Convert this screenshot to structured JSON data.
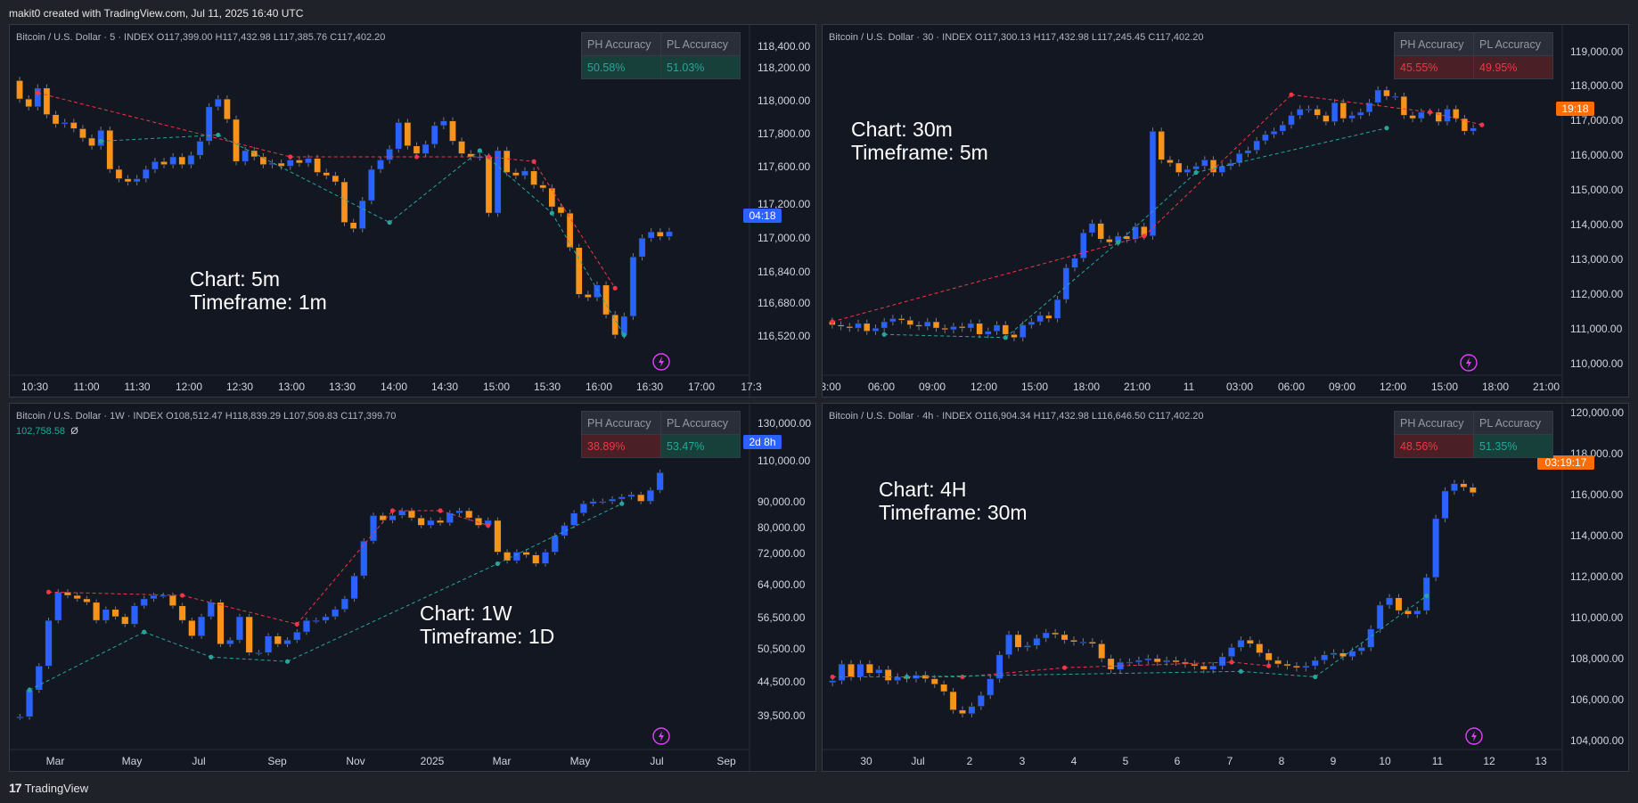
{
  "topbar": {
    "text": "makit0 created with TradingView.com, Jul 11, 2025 16:40 UTC"
  },
  "footer": {
    "logo": "17",
    "brand": "TradingView"
  },
  "colors": {
    "bull": "#2962ff",
    "bear": "#f7931a",
    "ph": "#f23645",
    "pl": "#26a69a",
    "bg": "#131722"
  },
  "panels": [
    {
      "header": "Bitcoin / U.S. Dollar · 5 · INDEX  O117,399.00  H117,432.98  L117,385.76  C117,402.20",
      "sub": "",
      "accuracy": {
        "ph_label": "PH Accuracy",
        "pl_label": "PL Accuracy",
        "ph_value": "50.58%",
        "pl_value": "51.03%",
        "ph_color": "green",
        "pl_color": "green"
      },
      "annotation": {
        "line1": "Chart: 5m",
        "line2": "Timeframe: 1m"
      },
      "chart_data": {
        "type": "candlestick",
        "price_ticks": [
          "118,400.00",
          "118,200.00",
          "118,000.00",
          "117,800.00",
          "117,600.00",
          "117,200.00",
          "117,000.00",
          "116,840.00",
          "116,680.00",
          "116,520.00"
        ],
        "time_ticks": [
          "10:30",
          "11:00",
          "11:30",
          "12:00",
          "12:30",
          "13:00",
          "13:30",
          "14:00",
          "14:30",
          "15:00",
          "15:30",
          "16:00",
          "16:30",
          "17:00",
          "17:3"
        ],
        "last_label": "04:18",
        "ylim": [
          116500,
          118450
        ],
        "closes": [
          118250,
          118200,
          118320,
          118150,
          118090,
          118100,
          118060,
          118000,
          117950,
          118050,
          117800,
          117740,
          117720,
          117740,
          117800,
          117850,
          117830,
          117880,
          117830,
          117890,
          117980,
          118200,
          118250,
          118120,
          117850,
          117920,
          117880,
          117830,
          117840,
          117820,
          117860,
          117840,
          117870,
          117780,
          117760,
          117720,
          117460,
          117420,
          117600,
          117800,
          117860,
          117930,
          118100,
          117950,
          117900,
          117960,
          118080,
          118110,
          117980,
          117900,
          117880,
          117880,
          117520,
          117920,
          117780,
          117760,
          117790,
          117700,
          117680,
          117560,
          117520,
          117300,
          117000,
          116980,
          117060,
          116870,
          116740,
          116860,
          117240,
          117360,
          117400,
          117370,
          117402
        ],
        "ph_points": [
          [
            2,
            118290
          ],
          [
            30,
            117880
          ],
          [
            44,
            117880
          ],
          [
            52,
            117880
          ],
          [
            57,
            117850
          ],
          [
            66,
            117040
          ]
        ],
        "pl_points": [
          [
            9,
            117980
          ],
          [
            22,
            118020
          ],
          [
            41,
            117460
          ],
          [
            51,
            117920
          ],
          [
            59,
            117520
          ],
          [
            67,
            116740
          ]
        ]
      }
    },
    {
      "header": "Bitcoin / U.S. Dollar · 30 · INDEX  O117,300.13  H117,432.98  L117,245.45  C117,402.20",
      "sub": "",
      "accuracy": {
        "ph_label": "PH Accuracy",
        "pl_label": "PL Accuracy",
        "ph_value": "45.55%",
        "pl_value": "49.95%",
        "ph_color": "red",
        "pl_color": "red"
      },
      "annotation": {
        "line1": "Chart: 30m",
        "line2": "Timeframe: 5m"
      },
      "chart_data": {
        "type": "candlestick",
        "price_ticks": [
          "119,000.00",
          "118,000.00",
          "117,000.00",
          "116,000.00",
          "115,000.00",
          "114,000.00",
          "113,000.00",
          "112,000.00",
          "111,000.00",
          "110,000.00"
        ],
        "time_ticks": [
          "3:00",
          "06:00",
          "09:00",
          "12:00",
          "15:00",
          "18:00",
          "21:00",
          "11",
          "03:00",
          "06:00",
          "09:00",
          "12:00",
          "15:00",
          "18:00",
          "21:00"
        ],
        "last_label": "19:18",
        "ylim": [
          109700,
          119300
        ],
        "closes": [
          111200,
          111150,
          111100,
          111250,
          111000,
          111100,
          111300,
          111400,
          111350,
          111200,
          111150,
          111300,
          111100,
          111050,
          111150,
          111100,
          111250,
          110900,
          111000,
          111200,
          110900,
          110800,
          111200,
          111300,
          111500,
          111400,
          112000,
          113000,
          113300,
          114100,
          114400,
          113900,
          113800,
          114000,
          113900,
          114300,
          114000,
          117300,
          116400,
          116300,
          116000,
          116100,
          116200,
          116400,
          116000,
          116200,
          116300,
          116600,
          116700,
          117000,
          117200,
          117300,
          117500,
          117800,
          118000,
          118000,
          117800,
          117600,
          118200,
          117700,
          117800,
          117900,
          118200,
          118600,
          118400,
          118400,
          117800,
          117700,
          117900,
          117900,
          117600,
          118000,
          117700,
          117300,
          117402
        ],
        "ph_points": [
          [
            0,
            111300
          ],
          [
            36,
            114000
          ],
          [
            53,
            118450
          ],
          [
            69,
            117900
          ],
          [
            75,
            117500
          ]
        ],
        "pl_points": [
          [
            6,
            110900
          ],
          [
            20,
            110800
          ],
          [
            33,
            113800
          ],
          [
            42,
            116000
          ],
          [
            64,
            117400
          ]
        ]
      }
    },
    {
      "header": "Bitcoin / U.S. Dollar · 1W · INDEX  O108,512.47  H118,839.29  L107,509.83  C117,399.70",
      "sub": "102,758.58",
      "sub2": "Ø",
      "accuracy": {
        "ph_label": "PH Accuracy",
        "pl_label": "PL Accuracy",
        "ph_value": "38.89%",
        "pl_value": "53.47%",
        "ph_color": "red",
        "pl_color": "green"
      },
      "annotation": {
        "line1": "Chart: 1W",
        "line2": "Timeframe: 1D"
      },
      "chart_data": {
        "type": "candlestick",
        "scale": "log",
        "price_ticks": [
          "130,000.00",
          "110,000.00",
          "90,000.00",
          "80,000.00",
          "72,000.00",
          "64,000.00",
          "56,500.00",
          "50,500.00",
          "44,500.00",
          "39,500.00"
        ],
        "time_ticks": [
          "Mar",
          "May",
          "Jul",
          "Sep",
          "Nov",
          "2025",
          "Mar",
          "May",
          "Jul",
          "Sep"
        ],
        "last_label": "2d 8h",
        "ylim": [
          37000,
          135000
        ],
        "closes": [
          42000,
          47000,
          52000,
          63000,
          71000,
          70000,
          69000,
          68000,
          63000,
          66000,
          64000,
          62000,
          67000,
          69000,
          70000,
          70000,
          67000,
          63000,
          59000,
          64000,
          68000,
          57000,
          58000,
          64000,
          55000,
          55000,
          59000,
          57000,
          58000,
          60000,
          63000,
          63000,
          64000,
          66000,
          69000,
          76000,
          88000,
          98000,
          96000,
          98000,
          100000,
          97000,
          94000,
          96000,
          95000,
          99000,
          100000,
          97000,
          94000,
          96000,
          84000,
          81000,
          84000,
          83000,
          80000,
          84000,
          90000,
          94000,
          99000,
          103000,
          104000,
          104000,
          105000,
          106000,
          107000,
          104000,
          109000,
          117400
        ],
        "ph_points": [
          [
            3,
            71000
          ],
          [
            17,
            70000
          ],
          [
            29,
            62000
          ],
          [
            39,
            100000
          ],
          [
            44,
            100000
          ],
          [
            49,
            94000
          ]
        ],
        "pl_points": [
          [
            1,
            47000
          ],
          [
            13,
            60000
          ],
          [
            20,
            54000
          ],
          [
            28,
            53000
          ],
          [
            50,
            80000
          ],
          [
            63,
            103000
          ]
        ]
      }
    },
    {
      "header": "Bitcoin / U.S. Dollar · 4h · INDEX  O116,904.34  H117,432.98  L116,646.50  C117,402.20",
      "sub": "",
      "accuracy": {
        "ph_label": "PH Accuracy",
        "pl_label": "PL Accuracy",
        "ph_value": "48.56%",
        "pl_value": "51.35%",
        "ph_color": "red",
        "pl_color": "green"
      },
      "annotation": {
        "line1": "Chart: 4H",
        "line2": "Timeframe: 30m"
      },
      "chart_data": {
        "type": "candlestick",
        "price_ticks": [
          "120,000.00",
          "118,000.00",
          "116,000.00",
          "114,000.00",
          "112,000.00",
          "110,000.00",
          "108,000.00",
          "106,000.00",
          "104,000.00"
        ],
        "time_ticks": [
          "30",
          "Jul",
          "2",
          "3",
          "4",
          "5",
          "6",
          "7",
          "8",
          "9",
          "10",
          "11",
          "12",
          "13"
        ],
        "last_label": "03:19:17",
        "ylim": [
          103600,
          120300
        ],
        "closes": [
          107200,
          108100,
          107400,
          108100,
          107600,
          107800,
          107200,
          107400,
          107300,
          107500,
          107300,
          107000,
          106600,
          105600,
          105400,
          105800,
          106400,
          107300,
          108600,
          109700,
          109000,
          109100,
          109500,
          109800,
          109700,
          109400,
          109300,
          109300,
          109200,
          108400,
          107800,
          108200,
          108200,
          108300,
          108400,
          108200,
          108300,
          108200,
          108100,
          108000,
          107800,
          108000,
          108500,
          109000,
          109400,
          109200,
          108700,
          108300,
          108100,
          108000,
          107900,
          108000,
          108300,
          108600,
          108700,
          108500,
          108800,
          109000,
          110000,
          111300,
          111700,
          111000,
          110800,
          111000,
          112800,
          116000,
          117500,
          117900,
          117700,
          117400
        ],
        "ph_points": [
          [
            0,
            107400
          ],
          [
            14,
            107400
          ],
          [
            25,
            107900
          ],
          [
            43,
            108200
          ],
          [
            47,
            108000
          ]
        ],
        "pl_points": [
          [
            8,
            107400
          ],
          [
            44,
            107700
          ],
          [
            52,
            107400
          ],
          [
            64,
            111800
          ]
        ]
      }
    }
  ]
}
